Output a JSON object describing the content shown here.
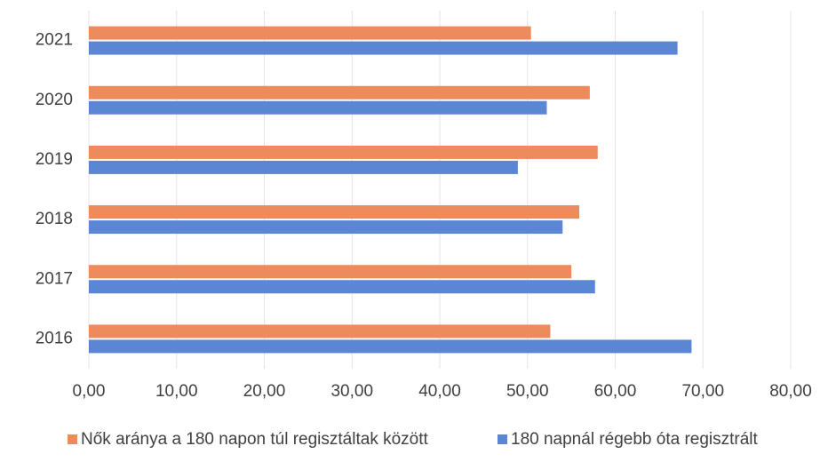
{
  "chart_data": {
    "type": "barh",
    "categories": [
      "2016",
      "2017",
      "2018",
      "2019",
      "2020",
      "2021"
    ],
    "series": [
      {
        "name": "Nők aránya a 180 napon túl regisztáltak között",
        "color": "#ed8b5c",
        "values": [
          52.6,
          55.0,
          55.9,
          58.0,
          57.1,
          50.4
        ]
      },
      {
        "name": "180 napnál régebb óta regisztrált",
        "color": "#5b86d4",
        "values": [
          68.7,
          57.7,
          54.0,
          48.9,
          52.2,
          67.1
        ]
      }
    ],
    "xlim": [
      0,
      80
    ],
    "xticks": [
      {
        "value": 0,
        "label": "0,00"
      },
      {
        "value": 10,
        "label": "10,00"
      },
      {
        "value": 20,
        "label": "20,00"
      },
      {
        "value": 30,
        "label": "30,00"
      },
      {
        "value": 40,
        "label": "40,00"
      },
      {
        "value": 50,
        "label": "50,00"
      },
      {
        "value": 60,
        "label": "60,00"
      },
      {
        "value": 70,
        "label": "70,00"
      },
      {
        "value": 80,
        "label": "80,00"
      }
    ],
    "grid": true,
    "legend": "bottom"
  }
}
